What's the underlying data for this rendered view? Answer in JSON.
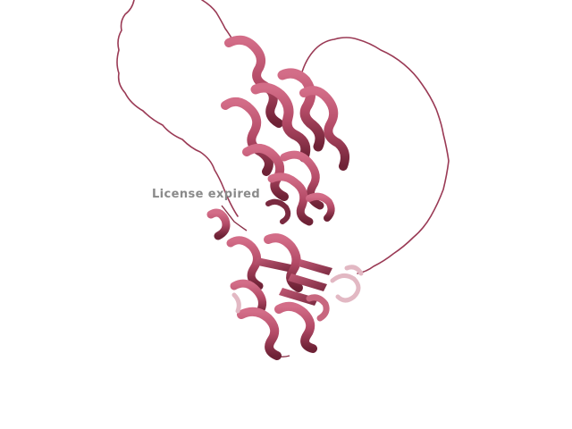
{
  "viewer": {
    "watermark_text": "License expired",
    "background_color": "#ffffff",
    "ribbon_color": "#b34a66",
    "ribbon_shadow_color": "#6e2236",
    "ribbon_light_color": "#d98ea2",
    "faded_color": "#e2b8c3"
  }
}
